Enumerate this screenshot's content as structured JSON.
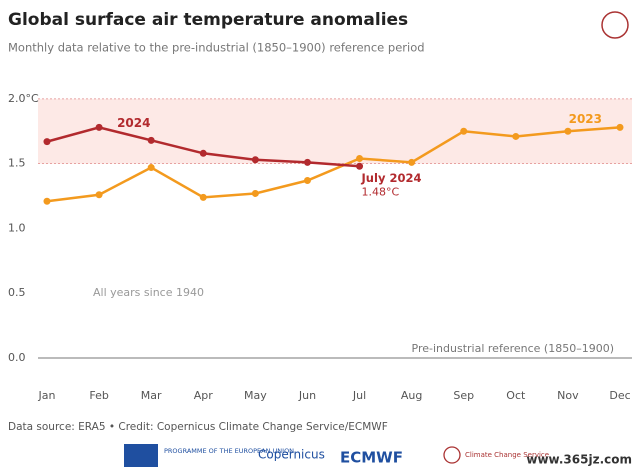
{
  "chart_data": {
    "type": "line",
    "title": "Global surface air temperature anomalies",
    "subtitle": "Monthly data relative to the pre-industrial (1850–1900) reference period",
    "categories": [
      "Jan",
      "Feb",
      "Mar",
      "Apr",
      "May",
      "Jun",
      "Jul",
      "Aug",
      "Sep",
      "Oct",
      "Nov",
      "Dec"
    ],
    "series": [
      {
        "name": "2024",
        "color": "#b22a2e",
        "values": [
          1.67,
          1.78,
          1.68,
          1.58,
          1.53,
          1.51,
          1.48,
          null,
          null,
          null,
          null,
          null
        ],
        "value_labels": [
          null,
          null,
          null,
          null,
          null,
          null,
          "1.48°C",
          null,
          null,
          null,
          null,
          null
        ]
      },
      {
        "name": "2023",
        "color": "#f39a1e",
        "values": [
          1.21,
          1.26,
          1.47,
          1.24,
          1.27,
          1.37,
          1.54,
          1.51,
          1.75,
          1.71,
          1.75,
          1.78
        ]
      }
    ],
    "annotations": [
      "July 2024",
      "All years since 1940",
      "Pre-industrial reference (1850–1900)"
    ],
    "band": {
      "from": 1.5,
      "to": 2.0,
      "color": "#fde9e6"
    },
    "ylim": [
      -0.17,
      2.03
    ],
    "yticks": [
      {
        "value": 0,
        "label": "0.0"
      },
      0.5,
      {
        "value": 1,
        "label": "1.0"
      },
      1.5,
      {
        "value": 2,
        "label": "2.0°C"
      }
    ],
    "source": "Data source: ERA5 • Credit: Copernicus Climate Change Service/ECMWF",
    "logos": [
      "PROGRAMME OF THE EUROPEAN UNION",
      "Copernicus",
      "ECMWF",
      "Climate Change Service"
    ],
    "watermark": "www.365jz.com"
  }
}
